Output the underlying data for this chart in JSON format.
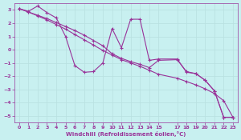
{
  "xlabel": "Windchill (Refroidissement éolien,°C)",
  "background_color": "#c8f0f0",
  "line_color": "#993399",
  "grid_color": "#b8e0e0",
  "xlim": [
    -0.5,
    23.5
  ],
  "ylim": [
    -5.5,
    3.5
  ],
  "yticks": [
    -5,
    -4,
    -3,
    -2,
    -1,
    0,
    1,
    2,
    3
  ],
  "xticks": [
    0,
    1,
    2,
    3,
    4,
    5,
    6,
    7,
    8,
    9,
    10,
    11,
    12,
    13,
    14,
    15,
    17,
    18,
    19,
    20,
    21,
    22,
    23
  ],
  "line1_x": [
    0,
    1,
    2,
    3,
    4,
    5,
    6,
    7,
    8,
    9,
    10,
    11,
    12,
    13,
    14,
    15,
    17,
    18,
    19,
    20,
    21,
    22,
    23
  ],
  "line1_y": [
    3.1,
    2.9,
    3.3,
    2.8,
    2.4,
    1.0,
    -1.2,
    -1.7,
    -1.65,
    -1.0,
    1.6,
    0.15,
    2.3,
    2.3,
    -0.8,
    -0.7,
    -0.7,
    -1.7,
    -1.8,
    -2.3,
    -3.1,
    -5.1,
    -5.1
  ],
  "line2_x": [
    0,
    1,
    2,
    3,
    4,
    5,
    6,
    7,
    8,
    9,
    10,
    11,
    12,
    13,
    14,
    15,
    17,
    18,
    19,
    20,
    21,
    22,
    23
  ],
  "line2_y": [
    3.1,
    2.85,
    2.6,
    2.35,
    2.05,
    1.75,
    1.45,
    1.1,
    0.7,
    0.3,
    -0.3,
    -0.65,
    -0.9,
    -1.1,
    -1.35,
    -0.8,
    -0.75,
    -1.65,
    -1.8,
    -2.3,
    -3.1,
    -5.1,
    -5.1
  ],
  "line3_x": [
    0,
    1,
    2,
    3,
    4,
    5,
    6,
    7,
    8,
    9,
    10,
    11,
    12,
    13,
    14,
    15,
    17,
    18,
    19,
    20,
    21,
    22,
    23
  ],
  "line3_y": [
    3.1,
    2.85,
    2.55,
    2.25,
    1.9,
    1.55,
    1.15,
    0.75,
    0.35,
    -0.05,
    -0.4,
    -0.75,
    -1.0,
    -1.25,
    -1.55,
    -1.85,
    -2.15,
    -2.4,
    -2.65,
    -2.95,
    -3.3,
    -3.85,
    -5.1
  ]
}
